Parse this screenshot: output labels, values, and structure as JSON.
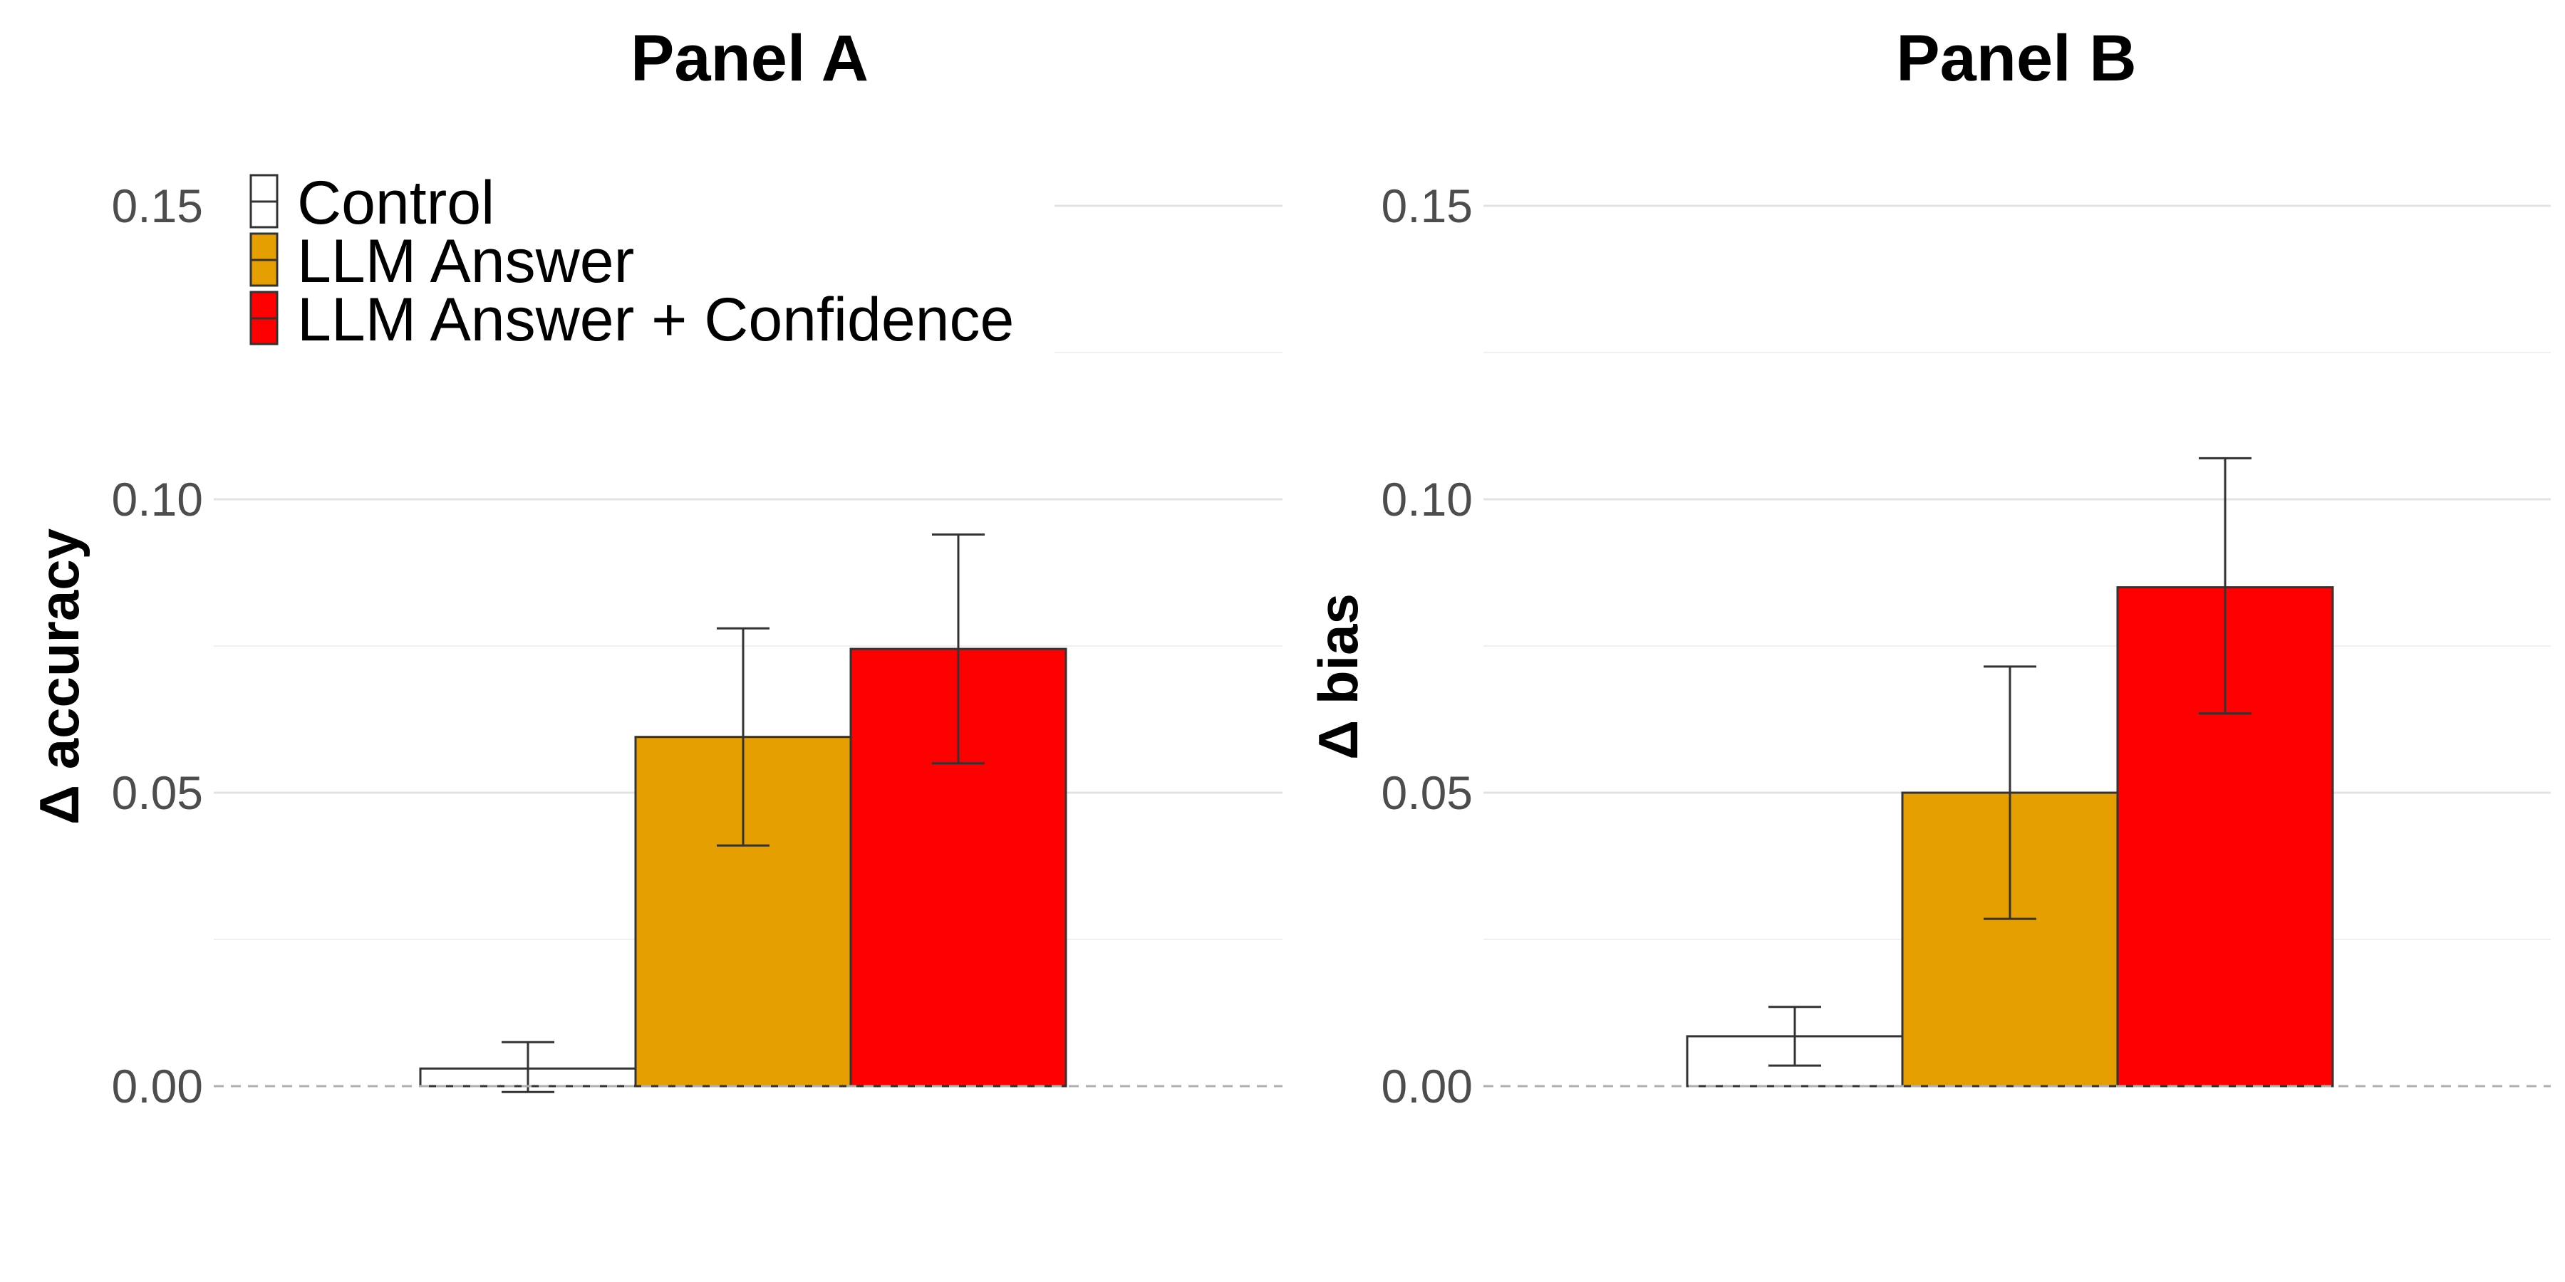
{
  "chart_data": [
    {
      "type": "bar",
      "title": "Panel A",
      "xlabel": "",
      "ylabel": "Δ accuracy",
      "ylim": [
        -0.015,
        0.16
      ],
      "yticks": [
        "0.00",
        "0.05",
        "0.10",
        "0.15"
      ],
      "ytick_values": [
        0,
        0.05,
        0.1,
        0.15
      ],
      "series": [
        {
          "name": "Control",
          "value": 0.003,
          "ci_low": -0.001,
          "ci_high": 0.0075,
          "color": "#FFFFFF"
        },
        {
          "name": "LLM Answer",
          "value": 0.0595,
          "ci_low": 0.041,
          "ci_high": 0.078,
          "color": "#E69F00"
        },
        {
          "name": "LLM Answer + Confidence",
          "value": 0.0745,
          "ci_low": 0.055,
          "ci_high": 0.094,
          "color": "#FF0000"
        }
      ],
      "reference_line": 0
    },
    {
      "type": "bar",
      "title": "Panel B",
      "xlabel": "",
      "ylabel": "Δ bias",
      "ylim": [
        -0.015,
        0.16
      ],
      "yticks": [
        "0.00",
        "0.05",
        "0.10",
        "0.15"
      ],
      "ytick_values": [
        0,
        0.05,
        0.1,
        0.15
      ],
      "series": [
        {
          "name": "Control",
          "value": 0.0085,
          "ci_low": 0.0035,
          "ci_high": 0.0135,
          "color": "#FFFFFF"
        },
        {
          "name": "LLM Answer",
          "value": 0.05,
          "ci_low": 0.0285,
          "ci_high": 0.0715,
          "color": "#E69F00"
        },
        {
          "name": "LLM Answer + Confidence",
          "value": 0.085,
          "ci_low": 0.0635,
          "ci_high": 0.107,
          "color": "#FF0000"
        }
      ],
      "reference_line": 0
    }
  ],
  "legend": {
    "placement": "top-left of Panel A",
    "items": [
      {
        "label": "Control",
        "color": "#FFFFFF"
      },
      {
        "label": "LLM Answer",
        "color": "#E69F00"
      },
      {
        "label": "LLM Answer + Confidence",
        "color": "#FF0000"
      }
    ]
  }
}
